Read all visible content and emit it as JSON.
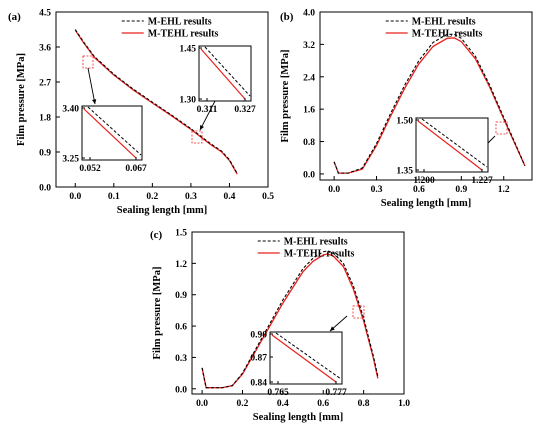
{
  "chart_data": [
    {
      "type": "line",
      "panel_label": "(a)",
      "xlabel": "Sealing length [mm]",
      "ylabel": "Film pressure [MPa]",
      "xlim": [
        -0.05,
        0.5
      ],
      "ylim": [
        0,
        4.5
      ],
      "xticks": [
        0.0,
        0.1,
        0.2,
        0.3,
        0.4,
        0.5
      ],
      "yticks": [
        0.0,
        0.9,
        1.8,
        2.7,
        3.6,
        4.5
      ],
      "xtick_labels": [
        "0.0",
        "0.1",
        "0.2",
        "0.3",
        "0.4",
        "0.5"
      ],
      "ytick_labels": [
        "0.0",
        "0.9",
        "1.8",
        "2.7",
        "3.6",
        "4.5"
      ],
      "legend": [
        "M-EHL results",
        "M-TEHL results"
      ],
      "legend_position": "top-right",
      "series": [
        {
          "name": "M-EHL results",
          "style": "dashed",
          "color": "#000000",
          "x": [
            0.0,
            0.02,
            0.05,
            0.1,
            0.15,
            0.2,
            0.25,
            0.3,
            0.35,
            0.38,
            0.4,
            0.42
          ],
          "y": [
            4.05,
            3.75,
            3.35,
            2.9,
            2.52,
            2.18,
            1.85,
            1.5,
            1.12,
            0.92,
            0.7,
            0.35
          ]
        },
        {
          "name": "M-TEHL results",
          "style": "solid",
          "color": "#e8201c",
          "x": [
            0.0,
            0.02,
            0.05,
            0.1,
            0.15,
            0.2,
            0.25,
            0.3,
            0.35,
            0.38,
            0.4,
            0.42
          ],
          "y": [
            4.03,
            3.73,
            3.33,
            2.88,
            2.5,
            2.16,
            1.83,
            1.48,
            1.1,
            0.9,
            0.68,
            0.33
          ]
        }
      ],
      "insets": [
        {
          "xticks": [
            "0.311",
            "0.327"
          ],
          "yticks": [
            "1.45",
            "1.30"
          ]
        },
        {
          "xticks": [
            "0.052",
            "0.067"
          ],
          "yticks": [
            "3.40",
            "3.25"
          ]
        }
      ]
    },
    {
      "type": "line",
      "panel_label": "(b)",
      "xlabel": "Sealing length [mm]",
      "ylabel": "Film pressure [MPa]",
      "xlim": [
        -0.1,
        1.4
      ],
      "ylim": [
        -0.15,
        4.0
      ],
      "xticks": [
        0.0,
        0.3,
        0.6,
        0.9,
        1.2
      ],
      "yticks": [
        0.0,
        0.8,
        1.6,
        2.4,
        3.2,
        4.0
      ],
      "xtick_labels": [
        "0.0",
        "0.3",
        "0.6",
        "0.9",
        "1.2"
      ],
      "ytick_labels": [
        "0.0",
        "0.8",
        "1.6",
        "2.4",
        "3.2",
        "4.0"
      ],
      "legend": [
        "M-EHL results",
        "M-TEHL results"
      ],
      "legend_position": "top-right",
      "series": [
        {
          "name": "M-EHL results",
          "style": "dashed",
          "color": "#000000",
          "x": [
            0.0,
            0.03,
            0.1,
            0.2,
            0.3,
            0.4,
            0.5,
            0.6,
            0.7,
            0.8,
            0.85,
            0.9,
            1.0,
            1.1,
            1.2,
            1.25,
            1.3,
            1.35
          ],
          "y": [
            0.3,
            0.02,
            0.02,
            0.15,
            0.75,
            1.5,
            2.2,
            2.8,
            3.25,
            3.45,
            3.45,
            3.35,
            2.9,
            2.2,
            1.4,
            1.0,
            0.6,
            0.2
          ]
        },
        {
          "name": "M-TEHL results",
          "style": "solid",
          "color": "#e8201c",
          "x": [
            0.0,
            0.03,
            0.1,
            0.2,
            0.3,
            0.4,
            0.5,
            0.6,
            0.7,
            0.8,
            0.85,
            0.9,
            1.0,
            1.1,
            1.2,
            1.25,
            1.3,
            1.35
          ],
          "y": [
            0.3,
            0.02,
            0.02,
            0.12,
            0.7,
            1.43,
            2.12,
            2.72,
            3.15,
            3.35,
            3.36,
            3.27,
            2.84,
            2.15,
            1.36,
            0.97,
            0.58,
            0.2
          ]
        }
      ],
      "insets": [
        {
          "xticks": [
            "1.200",
            "1.227"
          ],
          "yticks": [
            "1.50",
            "1.35"
          ]
        }
      ]
    },
    {
      "type": "line",
      "panel_label": "(c)",
      "xlabel": "Sealing length [mm]",
      "ylabel": "Film pressure [MPa]",
      "xlim": [
        -0.05,
        1.0
      ],
      "ylim": [
        -0.05,
        1.5
      ],
      "xticks": [
        0.0,
        0.2,
        0.4,
        0.6,
        0.8,
        1.0
      ],
      "yticks": [
        0.0,
        0.3,
        0.6,
        0.9,
        1.2,
        1.5
      ],
      "xtick_labels": [
        "0.0",
        "0.2",
        "0.4",
        "0.6",
        "0.8",
        "1.0"
      ],
      "ytick_labels": [
        "0.0",
        "0.3",
        "0.6",
        "0.9",
        "1.2",
        "1.5"
      ],
      "legend": [
        "M-EHL results",
        "M-TEHL results"
      ],
      "legend_position": "top-right",
      "series": [
        {
          "name": "M-EHL results",
          "style": "dashed",
          "color": "#000000",
          "x": [
            0.0,
            0.02,
            0.1,
            0.15,
            0.2,
            0.3,
            0.4,
            0.5,
            0.55,
            0.6,
            0.62,
            0.65,
            0.7,
            0.75,
            0.8,
            0.85,
            0.87
          ],
          "y": [
            0.2,
            0.01,
            0.01,
            0.03,
            0.15,
            0.5,
            0.85,
            1.15,
            1.25,
            1.31,
            1.32,
            1.3,
            1.2,
            0.98,
            0.68,
            0.3,
            0.12
          ]
        },
        {
          "name": "M-TEHL results",
          "style": "solid",
          "color": "#e8201c",
          "x": [
            0.0,
            0.02,
            0.1,
            0.15,
            0.2,
            0.3,
            0.4,
            0.5,
            0.55,
            0.6,
            0.62,
            0.65,
            0.7,
            0.75,
            0.8,
            0.85,
            0.87
          ],
          "y": [
            0.2,
            0.01,
            0.01,
            0.03,
            0.14,
            0.48,
            0.82,
            1.12,
            1.22,
            1.28,
            1.29,
            1.27,
            1.17,
            0.95,
            0.65,
            0.28,
            0.1
          ]
        }
      ],
      "insets": [
        {
          "xticks": [
            "0.765",
            "0.777"
          ],
          "yticks": [
            "0.90",
            "0.87",
            "0.84"
          ]
        }
      ]
    }
  ],
  "colors": {
    "tehl": "#e8201c",
    "ehl": "#000000",
    "marker_box": "#e8201c"
  }
}
